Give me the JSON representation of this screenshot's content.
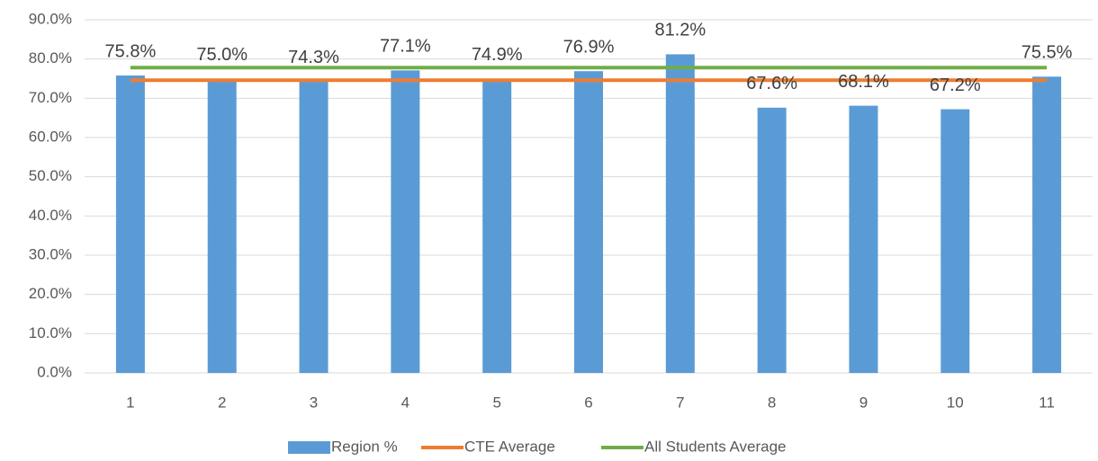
{
  "chart_data": {
    "type": "bar",
    "categories": [
      "1",
      "2",
      "3",
      "4",
      "5",
      "6",
      "7",
      "8",
      "9",
      "10",
      "11"
    ],
    "ylim": [
      0,
      90
    ],
    "yticks": [
      {
        "value": 0,
        "label": "0.0%"
      },
      {
        "value": 10,
        "label": "10.0%"
      },
      {
        "value": 20,
        "label": "20.0%"
      },
      {
        "value": 30,
        "label": "30.0%"
      },
      {
        "value": 40,
        "label": "40.0%"
      },
      {
        "value": 50,
        "label": "50.0%"
      },
      {
        "value": 60,
        "label": "60.0%"
      },
      {
        "value": 70,
        "label": "70.0%"
      },
      {
        "value": 80,
        "label": "80.0%"
      },
      {
        "value": 90,
        "label": "90.0%"
      }
    ],
    "grid": true,
    "legend": "bottom",
    "series": [
      {
        "name": "Region %",
        "type": "bar",
        "color": "#5b9bd5",
        "values": [
          75.8,
          75.0,
          74.3,
          77.1,
          74.9,
          76.9,
          81.2,
          67.6,
          68.1,
          67.2,
          75.5
        ],
        "value_labels": [
          "75.8%",
          "75.0%",
          "74.3%",
          "77.1%",
          "74.9%",
          "76.9%",
          "81.2%",
          "67.6%",
          "68.1%",
          "67.2%",
          "75.5%"
        ]
      },
      {
        "name": "CTE Average",
        "type": "line",
        "color": "#ed7d31",
        "values": [
          74.6,
          74.6,
          74.6,
          74.6,
          74.6,
          74.6,
          74.6,
          74.6,
          74.6,
          74.6,
          74.6
        ]
      },
      {
        "name": "All Students Average",
        "type": "line",
        "color": "#70ad47",
        "values": [
          77.8,
          77.8,
          77.8,
          77.8,
          77.8,
          77.8,
          77.8,
          77.8,
          77.8,
          77.8,
          77.8
        ]
      }
    ]
  }
}
